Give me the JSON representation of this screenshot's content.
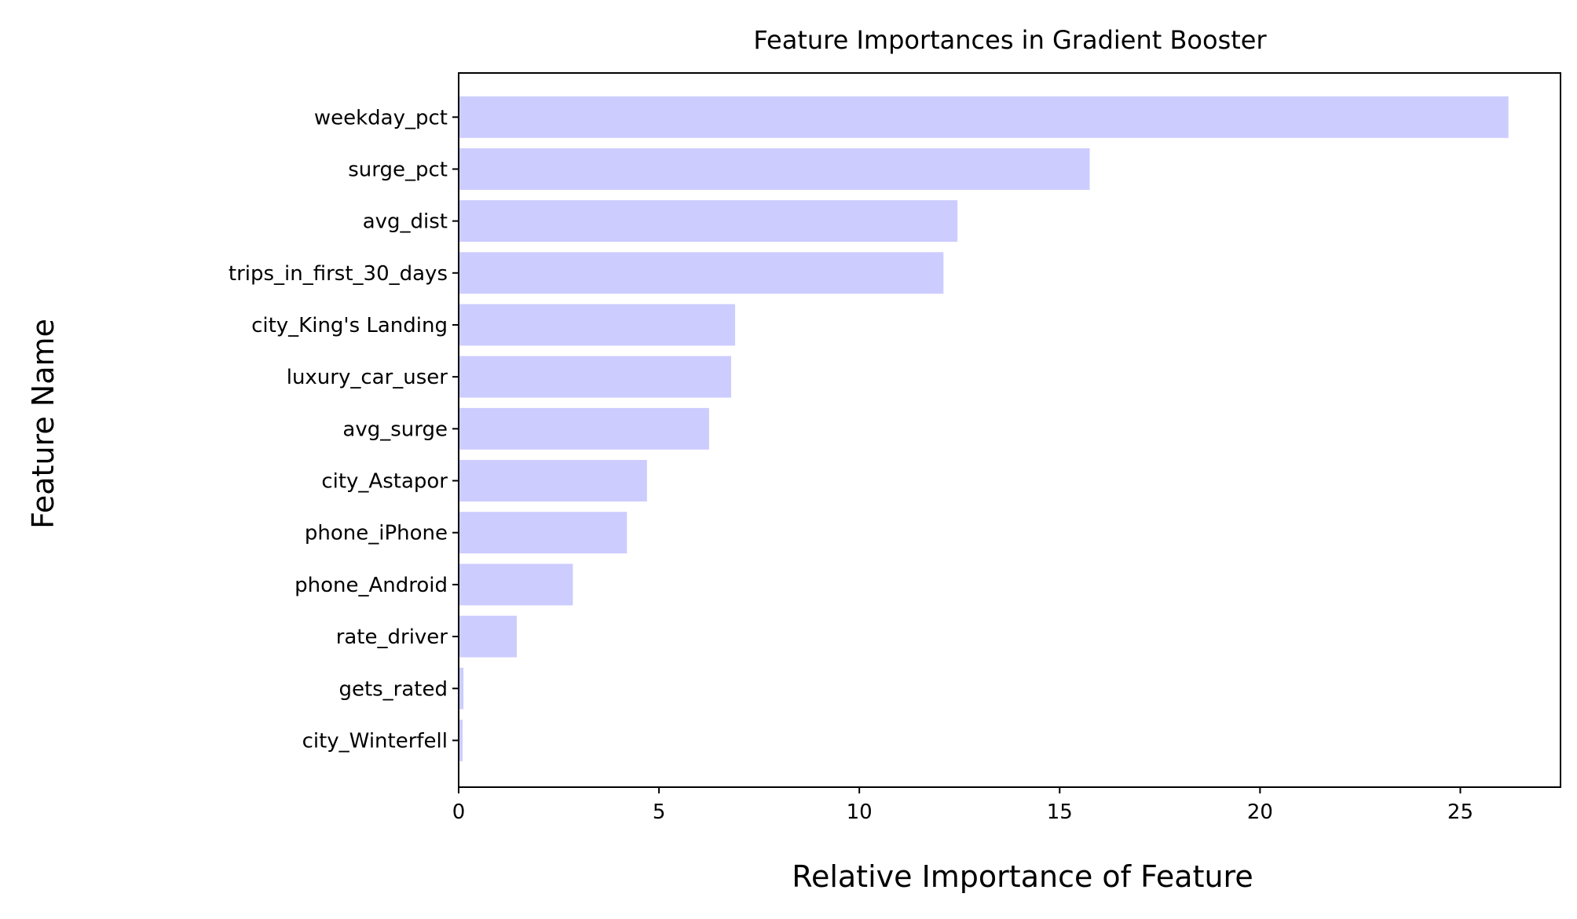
{
  "chart_data": {
    "type": "bar",
    "orientation": "horizontal",
    "title": "Feature Importances in Gradient Booster",
    "xlabel": "Relative Importance of Feature",
    "ylabel": "Feature Name",
    "categories": [
      "weekday_pct",
      "surge_pct",
      "avg_dist",
      "trips_in_first_30_days",
      "city_King's Landing",
      "luxury_car_user",
      "avg_surge",
      "city_Astapor",
      "phone_iPhone",
      "phone_Android",
      "rate_driver",
      "gets_rated",
      "city_Winterfell"
    ],
    "values": [
      26.2,
      15.75,
      12.45,
      12.1,
      6.9,
      6.8,
      6.25,
      4.7,
      4.2,
      2.85,
      1.45,
      0.12,
      0.1
    ],
    "xlim": [
      0,
      27.5
    ],
    "xticks": [
      0,
      5,
      10,
      15,
      20,
      25
    ],
    "grid": false,
    "legend": "none",
    "bar_color": "#ccccff"
  }
}
